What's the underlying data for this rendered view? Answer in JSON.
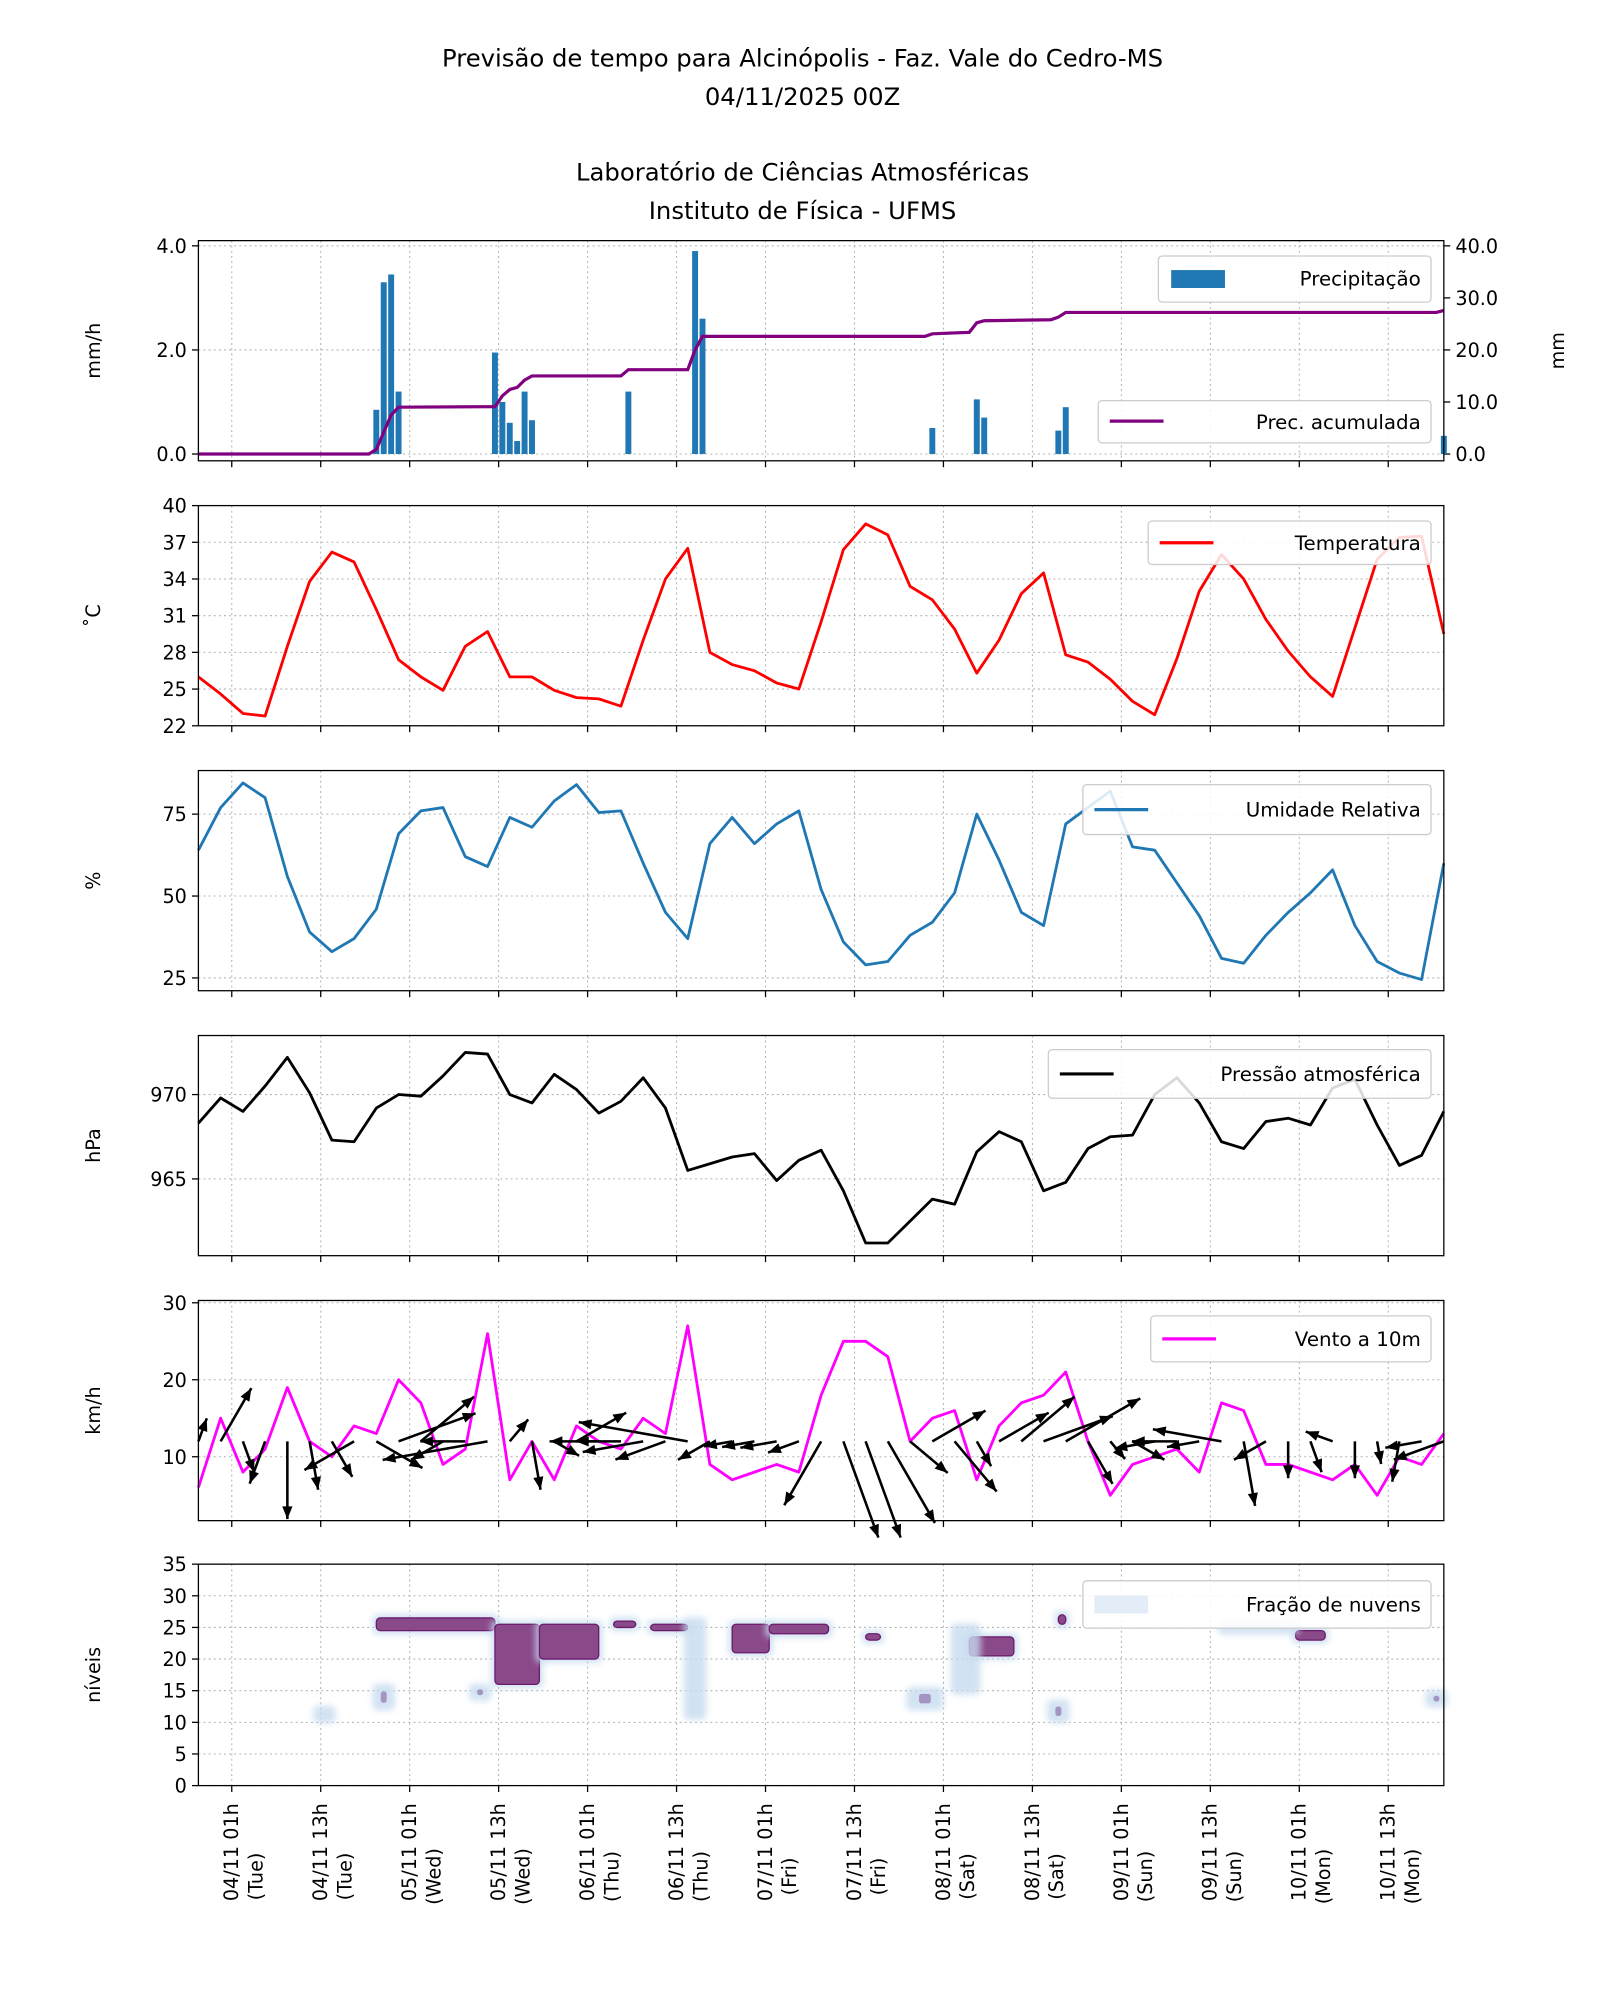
{
  "title": {
    "line1": "Previsão de tempo para Alcinópolis - Faz. Vale do Cedro-MS",
    "line2": "04/11/2025 00Z",
    "line3": "Laboratório de Ciências Atmosféricas",
    "line4": "Instituto de Física - UFMS"
  },
  "chart_data": {
    "type": "line",
    "time_start": "04/11/2025 00Z",
    "time_step_hours": 3,
    "x_ticks": [
      {
        "date": "04/11 01h",
        "day": "(Tue)"
      },
      {
        "date": "04/11 13h",
        "day": "(Tue)"
      },
      {
        "date": "05/11 01h",
        "day": "(Wed)"
      },
      {
        "date": "05/11 13h",
        "day": "(Wed)"
      },
      {
        "date": "06/11 01h",
        "day": "(Thu)"
      },
      {
        "date": "06/11 13h",
        "day": "(Thu)"
      },
      {
        "date": "07/11 01h",
        "day": "(Fri)"
      },
      {
        "date": "07/11 13h",
        "day": "(Fri)"
      },
      {
        "date": "08/11 01h",
        "day": "(Sat)"
      },
      {
        "date": "08/11 13h",
        "day": "(Sat)"
      },
      {
        "date": "09/11 01h",
        "day": "(Sun)"
      },
      {
        "date": "09/11 13h",
        "day": "(Sun)"
      },
      {
        "date": "10/11 01h",
        "day": "(Mon)"
      },
      {
        "date": "10/11 13h",
        "day": "(Mon)"
      }
    ],
    "grid": true,
    "panels": {
      "precipitation": {
        "type": "bar",
        "ylabel": "mm/h",
        "ylim": [
          -0.13,
          4.1
        ],
        "yticks": [
          "0.0",
          "2.0",
          "4.0"
        ],
        "ylabel_right": "mm",
        "ylim_right": [
          -1.3,
          41
        ],
        "yticks_right": [
          "0.0",
          "10.0",
          "20.0",
          "30.0",
          "40.0"
        ],
        "legend_bar": "Precipitação",
        "legend_line": "Prec. acumulada",
        "bar_color": "#1f77b4",
        "line_color": "#800080",
        "bars": [
          [
            "05/11 00Z",
            0.85
          ],
          [
            "05/11 01Z",
            3.3
          ],
          [
            "05/11 02Z",
            3.45
          ],
          [
            "05/11 03Z",
            1.2
          ],
          [
            "05/11 16Z",
            1.95
          ],
          [
            "05/11 17Z",
            1.0
          ],
          [
            "05/11 18Z",
            0.6
          ],
          [
            "05/11 19Z",
            0.25
          ],
          [
            "05/11 20Z",
            1.2
          ],
          [
            "05/11 21Z",
            0.65
          ],
          [
            "06/11 10Z",
            1.2
          ],
          [
            "06/11 19Z",
            3.9
          ],
          [
            "06/11 20Z",
            2.6
          ],
          [
            "08/11 03Z",
            0.5
          ],
          [
            "08/11 09Z",
            1.05
          ],
          [
            "08/11 10Z",
            0.7
          ],
          [
            "08/11 20Z",
            0.45
          ],
          [
            "08/11 21Z",
            0.9
          ],
          [
            "11/11 00Z",
            0.35
          ]
        ],
        "accumulated": [
          [
            "04/11 00Z",
            0
          ],
          [
            "04/11 23Z",
            0
          ],
          [
            "05/11 00Z",
            0.9
          ],
          [
            "05/11 02Z",
            7.5
          ],
          [
            "05/11 03Z",
            9.0
          ],
          [
            "05/11 16Z",
            9.1
          ],
          [
            "05/11 17Z",
            11.2
          ],
          [
            "05/11 18Z",
            12.4
          ],
          [
            "05/11 19Z",
            12.8
          ],
          [
            "05/11 20Z",
            14.2
          ],
          [
            "05/11 21Z",
            15.0
          ],
          [
            "06/11 09Z",
            15.0
          ],
          [
            "06/11 10Z",
            16.2
          ],
          [
            "06/11 18Z",
            16.2
          ],
          [
            "06/11 19Z",
            20.0
          ],
          [
            "06/11 20Z",
            22.6
          ],
          [
            "08/11 02Z",
            22.6
          ],
          [
            "08/11 03Z",
            23.1
          ],
          [
            "08/11 08Z",
            23.4
          ],
          [
            "08/11 09Z",
            25.2
          ],
          [
            "08/11 10Z",
            25.6
          ],
          [
            "08/11 19Z",
            25.8
          ],
          [
            "08/11 20Z",
            26.3
          ],
          [
            "08/11 21Z",
            27.2
          ],
          [
            "10/11 23Z",
            27.2
          ],
          [
            "11/11 00Z",
            27.6
          ]
        ]
      },
      "temperature": {
        "ylabel": "˚C",
        "ylim": [
          22,
          40
        ],
        "yticks": [
          "22",
          "25",
          "28",
          "31",
          "34",
          "37",
          "40"
        ],
        "legend": "Temperatura",
        "color": "#ff0000",
        "values": [
          26,
          24.6,
          23.0,
          22.8,
          28.5,
          33.8,
          36.2,
          35.4,
          31.5,
          27.4,
          26,
          24.9,
          28.5,
          29.7,
          26,
          26,
          24.9,
          24.3,
          24.2,
          23.6,
          29,
          34,
          36.5,
          28,
          27,
          26.5,
          25.5,
          25,
          30.5,
          36.4,
          38.5,
          37.6,
          33.4,
          32.3,
          29.9,
          26.3,
          29,
          32.8,
          34.5,
          27.8,
          27.2,
          25.8,
          24,
          22.9,
          27.5,
          33,
          36,
          34,
          30.7,
          28.1,
          26,
          24.4,
          30,
          35.6,
          37.4,
          37.5,
          29.5
        ]
      },
      "humidity": {
        "ylabel": "%",
        "ylim": [
          21.1,
          88.3
        ],
        "yticks": [
          "25",
          "50",
          "75"
        ],
        "legend": "Umidade Relativa",
        "color": "#1f77b4",
        "values": [
          64,
          77,
          84.5,
          80,
          56,
          39,
          33,
          37,
          46,
          69,
          76,
          77,
          62,
          59,
          74,
          71,
          79,
          84,
          75.5,
          76,
          60,
          45,
          37,
          66,
          74,
          66,
          72,
          76,
          52,
          36,
          29,
          30,
          38,
          42,
          51,
          75,
          61,
          45,
          41,
          72,
          77,
          82,
          65,
          64,
          54,
          44,
          31,
          29.5,
          38,
          45,
          51,
          58,
          41,
          30,
          26.5,
          24.5,
          60
        ]
      },
      "pressure": {
        "ylabel": "hPa",
        "ylim": [
          960.45,
          973.5
        ],
        "yticks": [
          "965",
          "970"
        ],
        "legend": "Pressão atmosférica",
        "color": "#000000",
        "values": [
          968.3,
          969.8,
          969,
          970.5,
          972.2,
          970.1,
          967.3,
          967.2,
          969.2,
          970,
          969.9,
          971.1,
          972.5,
          972.4,
          970,
          969.5,
          971.2,
          970.3,
          968.9,
          969.6,
          971,
          969.2,
          965.5,
          965.9,
          966.3,
          966.5,
          964.9,
          966.1,
          966.7,
          964.3,
          961.2,
          961.2,
          962.5,
          963.8,
          963.5,
          966.6,
          967.8,
          967.2,
          964.3,
          964.8,
          966.8,
          967.5,
          967.6,
          970,
          971,
          969.5,
          967.2,
          966.8,
          968.4,
          968.6,
          968.2,
          970.4,
          970.9,
          968.2,
          965.8,
          966.4,
          969
        ]
      },
      "wind": {
        "ylabel": "km/h",
        "ylim": [
          1.7,
          30.3
        ],
        "yticks": [
          "10",
          "20",
          "30"
        ],
        "legend": "Vento a 10m",
        "color": "#ff00ff",
        "arrow_color": "#000000",
        "speed": [
          6,
          15,
          8,
          11,
          19,
          12,
          10,
          14,
          13,
          20,
          17,
          9,
          11,
          26,
          7,
          12,
          7,
          14,
          12,
          11,
          15,
          13,
          27,
          9,
          7,
          8,
          9,
          8,
          18,
          25,
          25,
          23,
          12,
          15,
          16,
          7,
          14,
          17,
          18,
          21,
          12,
          5,
          9,
          10,
          11,
          8,
          17,
          16,
          9,
          9,
          8,
          7,
          9,
          5,
          10,
          9,
          13
        ],
        "direction_deg": [
          200,
          210,
          340,
          20,
          0,
          350,
          330,
          60,
          300,
          250,
          230,
          60,
          90,
          80,
          220,
          350,
          300,
          240,
          90,
          90,
          80,
          70,
          100,
          60,
          80,
          80,
          80,
          70,
          30,
          340,
          340,
          330,
          310,
          240,
          320,
          330,
          240,
          230,
          250,
          240,
          330,
          320,
          300,
          80,
          90,
          80,
          100,
          350,
          60,
          0,
          340,
          110,
          0,
          350,
          10,
          80,
          70
        ]
      },
      "clouds": {
        "type": "heatmap",
        "ylabel": "níveis",
        "ylim": [
          0,
          35
        ],
        "yticks": [
          "0",
          "5",
          "10",
          "15",
          "20",
          "25",
          "30",
          "35"
        ],
        "legend": "Fração de nuvens",
        "color_high": "#8a4a8a",
        "color_low": "#c6dbef",
        "regions": [
          {
            "from": "05/11 00Z",
            "to": "05/11 16Z",
            "level": [
              24.5,
              26.5
            ],
            "fraction": 0.9
          },
          {
            "from": "05/11 16Z",
            "to": "05/11 22Z",
            "level": [
              16,
              25.5
            ],
            "fraction": 0.9
          },
          {
            "from": "05/11 22Z",
            "to": "06/11 06Z",
            "level": [
              20,
              25.5
            ],
            "fraction": 0.9
          },
          {
            "from": "06/11 08Z",
            "to": "06/11 11Z",
            "level": [
              25,
              26
            ],
            "fraction": 0.8
          },
          {
            "from": "06/11 13Z",
            "to": "06/11 18Z",
            "level": [
              24.5,
              25.5
            ],
            "fraction": 0.8
          },
          {
            "from": "07/11 00Z",
            "to": "07/11 05Z",
            "level": [
              21,
              25.5
            ],
            "fraction": 0.9
          },
          {
            "from": "07/11 05Z",
            "to": "07/11 13Z",
            "level": [
              24,
              25.5
            ],
            "fraction": 0.85
          },
          {
            "from": "07/11 18Z",
            "to": "07/11 20Z",
            "level": [
              23,
              24
            ],
            "fraction": 0.7
          },
          {
            "from": "08/11 08Z",
            "to": "08/11 14Z",
            "level": [
              20.5,
              23.5
            ],
            "fraction": 0.85
          },
          {
            "from": "08/11 20Z",
            "to": "08/11 21Z",
            "level": [
              25.5,
              27
            ],
            "fraction": 0.7
          },
          {
            "from": "10/11 04Z",
            "to": "10/11 08Z",
            "level": [
              23,
              24.5
            ],
            "fraction": 0.85
          },
          {
            "from": "05/11 00Z",
            "to": "05/11 02Z",
            "level": [
              12.5,
              15.5
            ],
            "fraction": 0.5
          },
          {
            "from": "05/11 13Z",
            "to": "05/11 15Z",
            "level": [
              14,
              15.5
            ],
            "fraction": 0.5
          },
          {
            "from": "08/11 00Z",
            "to": "08/11 04Z",
            "level": [
              12.5,
              15
            ],
            "fraction": 0.5
          },
          {
            "from": "08/11 19Z",
            "to": "08/11 21Z",
            "level": [
              10.5,
              13
            ],
            "fraction": 0.4
          },
          {
            "from": "08/11 06Z",
            "to": "08/11 09Z",
            "level": [
              15,
              25
            ],
            "fraction": 0.2
          },
          {
            "from": "09/11 18Z",
            "to": "10/11 04Z",
            "level": [
              24.5,
              25.5
            ],
            "fraction": 0.25
          },
          {
            "from": "06/11 18Z",
            "to": "06/11 20Z",
            "level": [
              11,
              26
            ],
            "fraction": 0.2
          },
          {
            "from": "10/11 22Z",
            "to": "11/11 00Z",
            "level": [
              13,
              14.5
            ],
            "fraction": 0.5
          },
          {
            "from": "04/11 16Z",
            "to": "04/11 18Z",
            "level": [
              10.5,
              12
            ],
            "fraction": 0.2
          }
        ]
      }
    }
  }
}
